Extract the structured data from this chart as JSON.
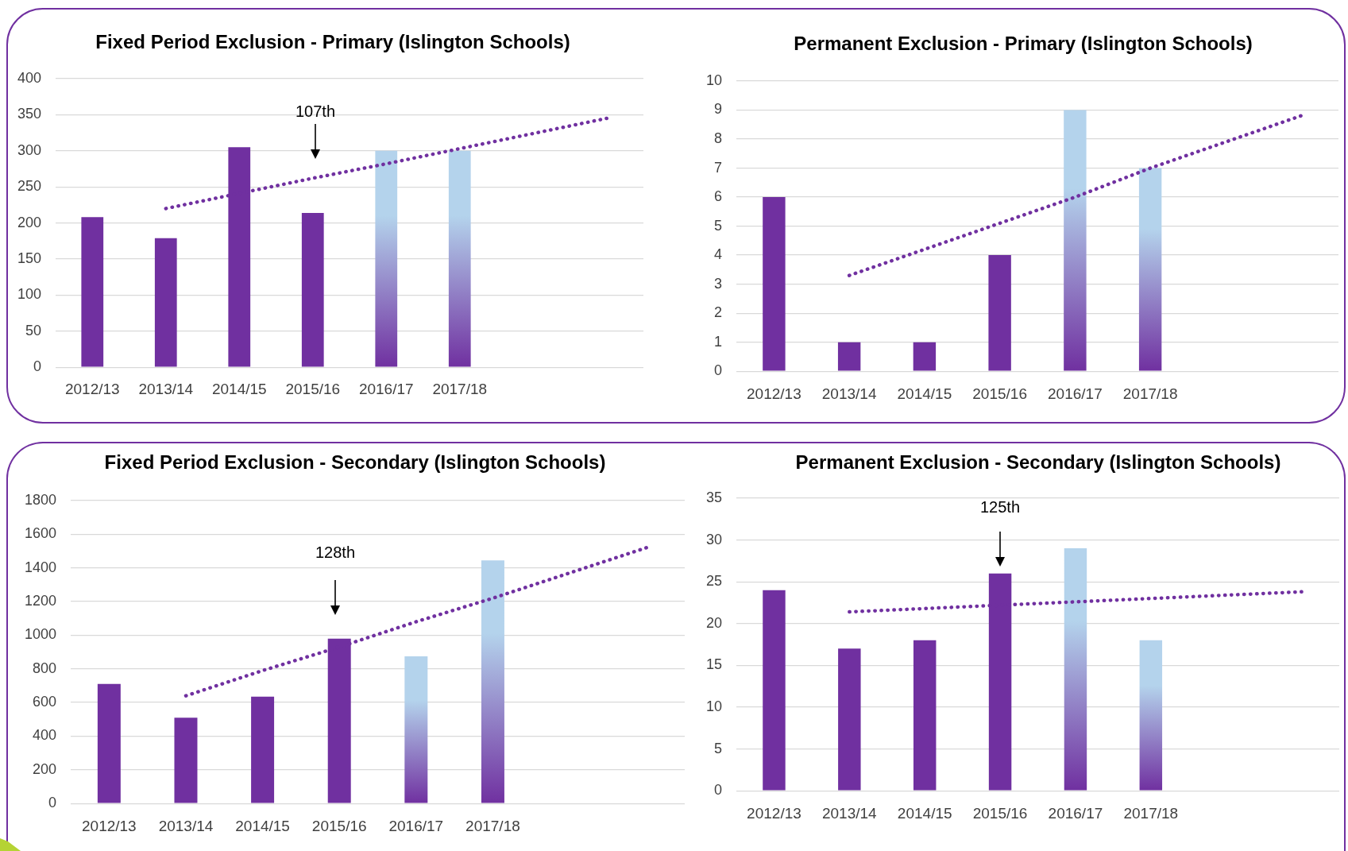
{
  "chart_data": [
    {
      "type": "bar",
      "title": "Fixed Period Exclusion - Primary (Islington Schools)",
      "categories": [
        "2012/13",
        "2013/14",
        "2014/15",
        "2015/16",
        "2016/17",
        "2017/18",
        null,
        null
      ],
      "series": [
        {
          "color": "#7030a0",
          "colors": [
            "#7030a0",
            "#7030a0",
            "#7030a0",
            "#7030a0",
            "#b4d3ec",
            "#b4d3ec",
            null,
            null
          ],
          "values": [
            208,
            179,
            305,
            214,
            300,
            300,
            null,
            null
          ]
        },
        {
          "type": "line",
          "color": "#7030a0",
          "line_style": "dotted",
          "marker": "none",
          "values": [
            null,
            220,
            241,
            262,
            282,
            303,
            324,
            345
          ]
        }
      ],
      "ylim": [
        0,
        400
      ],
      "yticks": [
        0,
        50,
        100,
        150,
        200,
        250,
        300,
        350,
        400
      ],
      "grid": "y",
      "annotations": [
        "107th"
      ]
    },
    {
      "type": "bar",
      "title": "Permanent Exclusion - Primary (Islington Schools)",
      "categories": [
        "2012/13",
        "2013/14",
        "2014/15",
        "2015/16",
        "2016/17",
        "2017/18",
        null,
        null
      ],
      "series": [
        {
          "color": "#7030a0",
          "colors": [
            "#7030a0",
            "#7030a0",
            "#7030a0",
            "#7030a0",
            "#b4d3ec",
            "#b4d3ec",
            null,
            null
          ],
          "values": [
            6,
            1,
            1,
            4,
            9,
            7,
            null,
            null
          ]
        },
        {
          "type": "line",
          "color": "#7030a0",
          "line_style": "dotted",
          "marker": "none",
          "values": [
            null,
            3.3,
            4.2,
            5.1,
            6.0,
            7.0,
            7.9,
            8.8
          ]
        }
      ],
      "ylim": [
        0,
        10
      ],
      "yticks": [
        0,
        1,
        2,
        3,
        4,
        5,
        6,
        7,
        8,
        9,
        10
      ],
      "grid": "y"
    },
    {
      "type": "bar",
      "title": "Fixed Period Exclusion - Secondary (Islington Schools)",
      "categories": [
        "2012/13",
        "2013/14",
        "2014/15",
        "2015/16",
        "2016/17",
        "2017/18",
        null,
        null
      ],
      "series": [
        {
          "color": "#7030a0",
          "colors": [
            "#7030a0",
            "#7030a0",
            "#7030a0",
            "#7030a0",
            "#b4d3ec",
            "#b4d3ec",
            null,
            null
          ],
          "values": [
            710,
            510,
            635,
            980,
            875,
            1445,
            null,
            null
          ]
        },
        {
          "type": "line",
          "color": "#7030a0",
          "line_style": "dotted",
          "marker": "none",
          "values": [
            null,
            640,
            790,
            930,
            1080,
            1220,
            1370,
            1520
          ]
        }
      ],
      "ylim": [
        0,
        1800
      ],
      "yticks": [
        0,
        200,
        400,
        600,
        800,
        1000,
        1200,
        1400,
        1600,
        1800
      ],
      "grid": "y",
      "annotations": [
        "128th"
      ]
    },
    {
      "type": "bar",
      "title": "Permanent Exclusion - Secondary (Islington Schools)",
      "categories": [
        "2012/13",
        "2013/14",
        "2014/15",
        "2015/16",
        "2016/17",
        "2017/18",
        null,
        null
      ],
      "series": [
        {
          "color": "#7030a0",
          "colors": [
            "#7030a0",
            "#7030a0",
            "#7030a0",
            "#7030a0",
            "#b4d3ec",
            "#b4d3ec",
            null,
            null
          ],
          "values": [
            24,
            17,
            18,
            26,
            29,
            18,
            null,
            null
          ]
        },
        {
          "type": "line",
          "color": "#7030a0",
          "line_style": "dotted",
          "marker": "none",
          "values": [
            null,
            21.4,
            21.8,
            22.2,
            22.6,
            23,
            23.4,
            23.8
          ]
        }
      ],
      "ylim": [
        0,
        35
      ],
      "yticks": [
        0,
        5,
        10,
        15,
        20,
        25,
        30,
        35
      ],
      "grid": "y",
      "annotations": [
        "125th"
      ]
    }
  ]
}
